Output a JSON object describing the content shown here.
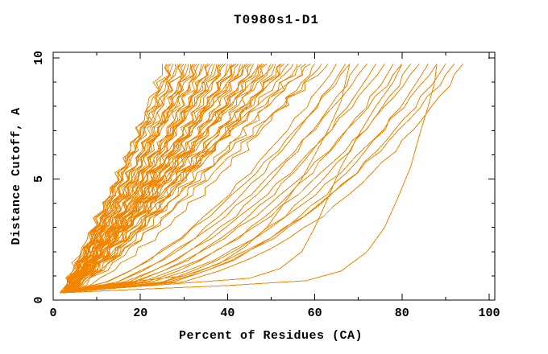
{
  "title": "T0980s1-D1",
  "colors": {
    "background": "#FFFFFF",
    "axis": "#000000",
    "curve": "#F28500"
  },
  "chart_data": {
    "type": "line",
    "title": "T0980s1-D1",
    "xlabel": "Percent of Residues (CA)",
    "ylabel": "Distance Cutoff, A",
    "xlim": [
      0,
      100
    ],
    "ylim": [
      0,
      10
    ],
    "grid": false,
    "legend": false,
    "x_major_ticks": [
      0,
      20,
      40,
      60,
      80,
      100
    ],
    "x_minor_ticks": [
      10,
      30,
      50,
      70,
      90
    ],
    "y_major_ticks": [
      0,
      5,
      10
    ],
    "y_minor_ticks": [
      1,
      2,
      3,
      4,
      6,
      7,
      8,
      9
    ],
    "series_color": "#F28500",
    "curve_start": {
      "x": 2,
      "y": 0.3
    },
    "curve_top_cutoff": 9.75,
    "curves": {
      "comment_dense": "each entry = [percent_at_top_cutoff, shape_exponent, start_percent, step_jag_amplitude]; x(y)=s+(e-s)*((y-0.3)/9.45)^k",
      "dense": [
        [
          25,
          0.85,
          1.5,
          1.2
        ],
        [
          26,
          1.0,
          2.0,
          1.4
        ],
        [
          26.5,
          0.9,
          2.5,
          1.0
        ],
        [
          27,
          1.1,
          3.0,
          1.5
        ],
        [
          27.5,
          0.95,
          1.8,
          1.1
        ],
        [
          28,
          0.8,
          2.2,
          1.3
        ],
        [
          28.5,
          1.05,
          2.8,
          0.9
        ],
        [
          29,
          0.9,
          1.5,
          1.6
        ],
        [
          29.5,
          1.15,
          2.0,
          1.2
        ],
        [
          30,
          0.75,
          2.5,
          1.4
        ],
        [
          30.5,
          0.85,
          3.0,
          1.0
        ],
        [
          31,
          1.0,
          1.8,
          1.5
        ],
        [
          31.5,
          0.9,
          2.2,
          1.1
        ],
        [
          32,
          1.1,
          2.8,
          1.3
        ],
        [
          32.5,
          0.95,
          1.5,
          0.9
        ],
        [
          33,
          0.8,
          2.0,
          1.6
        ],
        [
          33.5,
          1.05,
          2.5,
          1.2
        ],
        [
          34,
          0.9,
          3.0,
          1.4
        ],
        [
          34.5,
          1.15,
          1.8,
          1.0
        ],
        [
          35,
          0.75,
          2.2,
          1.5
        ],
        [
          35.5,
          0.85,
          2.8,
          1.1
        ],
        [
          36,
          1.0,
          1.5,
          1.3
        ],
        [
          36.5,
          0.9,
          2.0,
          0.9
        ],
        [
          37,
          1.1,
          2.5,
          1.6
        ],
        [
          37.5,
          0.95,
          3.0,
          1.2
        ],
        [
          38,
          0.8,
          1.8,
          1.4
        ],
        [
          38.5,
          1.05,
          2.2,
          1.0
        ],
        [
          39,
          0.9,
          2.8,
          1.5
        ],
        [
          39.5,
          1.15,
          1.5,
          1.1
        ],
        [
          40,
          0.75,
          2.0,
          1.3
        ],
        [
          40.5,
          0.85,
          2.5,
          0.9
        ],
        [
          41,
          1.0,
          3.0,
          1.6
        ],
        [
          41.5,
          0.9,
          1.8,
          1.2
        ],
        [
          42,
          1.1,
          2.2,
          1.4
        ],
        [
          42.5,
          0.95,
          2.8,
          1.0
        ],
        [
          43,
          0.8,
          1.5,
          1.5
        ],
        [
          43.5,
          1.05,
          2.0,
          1.1
        ],
        [
          44,
          0.9,
          2.5,
          1.3
        ],
        [
          44.5,
          1.15,
          3.0,
          0.9
        ],
        [
          45,
          0.75,
          1.8,
          1.6
        ],
        [
          45.5,
          0.85,
          2.2,
          1.2
        ],
        [
          46,
          1.0,
          2.8,
          1.4
        ],
        [
          47,
          0.9,
          1.5,
          1.0
        ],
        [
          47.5,
          1.1,
          2.0,
          1.5
        ],
        [
          48,
          0.95,
          2.5,
          1.1
        ],
        [
          48.5,
          0.8,
          3.0,
          1.3
        ],
        [
          49,
          1.05,
          1.8,
          0.9
        ],
        [
          50,
          0.9,
          2.2,
          1.6
        ],
        [
          50.5,
          1.15,
          2.8,
          1.2
        ],
        [
          51,
          0.75,
          1.5,
          1.4
        ],
        [
          52,
          0.85,
          2.0,
          1.0
        ],
        [
          52.5,
          1.0,
          2.5,
          1.5
        ],
        [
          53,
          0.9,
          3.0,
          1.1
        ],
        [
          54,
          1.1,
          1.8,
          1.3
        ],
        [
          55,
          0.95,
          2.2,
          0.9
        ],
        [
          56,
          0.8,
          2.8,
          1.6
        ],
        [
          57,
          1.05,
          1.5,
          1.2
        ],
        [
          58,
          0.9,
          2.0,
          1.4
        ],
        [
          59,
          1.15,
          2.5,
          1.0
        ],
        [
          60,
          0.75,
          3.0,
          1.5
        ],
        [
          61.5,
          0.85,
          1.8,
          1.1
        ],
        [
          63,
          1.0,
          2.2,
          1.3
        ]
      ],
      "slow": [
        [
          65,
          0.6,
          2.0,
          0.5
        ],
        [
          67,
          0.55,
          2.5,
          0.5
        ],
        [
          68,
          0.62,
          2.0,
          0.4
        ],
        [
          70,
          0.5,
          1.8,
          0.5
        ],
        [
          72,
          0.58,
          2.2,
          0.4
        ],
        [
          74,
          0.48,
          2.0,
          0.5
        ],
        [
          76,
          0.55,
          2.5,
          0.4
        ],
        [
          78,
          0.45,
          2.0,
          0.5
        ],
        [
          80,
          0.52,
          1.8,
          0.4
        ],
        [
          82,
          0.42,
          2.2,
          0.5
        ],
        [
          84,
          0.5,
          2.0,
          0.4
        ],
        [
          86,
          0.4,
          2.5,
          0.5
        ],
        [
          88,
          0.47,
          2.0,
          0.4
        ],
        [
          90,
          0.42,
          1.8,
          0.4
        ],
        [
          92,
          0.45,
          2.2,
          0.4
        ],
        [
          94,
          0.4,
          2.0,
          0.4
        ]
      ],
      "outliers": [
        [
          [
            2,
            0.3
          ],
          [
            20,
            0.45
          ],
          [
            40,
            0.6
          ],
          [
            58,
            0.8
          ],
          [
            66,
            1.2
          ],
          [
            72,
            2.0
          ],
          [
            76,
            3.0
          ],
          [
            79,
            4.2
          ],
          [
            82,
            5.5
          ],
          [
            84,
            6.8
          ],
          [
            86,
            8.0
          ],
          [
            87.5,
            9.0
          ],
          [
            88,
            9.75
          ]
        ],
        [
          [
            2,
            0.3
          ],
          [
            15,
            0.5
          ],
          [
            30,
            0.7
          ],
          [
            45,
            0.9
          ],
          [
            52,
            1.3
          ],
          [
            57,
            2.0
          ],
          [
            60,
            3.0
          ],
          [
            63,
            4.2
          ],
          [
            66,
            5.5
          ],
          [
            70,
            6.8
          ],
          [
            74,
            8.0
          ],
          [
            78,
            9.0
          ],
          [
            80,
            9.75
          ]
        ],
        [
          [
            2,
            0.3
          ],
          [
            10,
            0.6
          ],
          [
            20,
            0.8
          ],
          [
            30,
            1.0
          ],
          [
            38,
            1.5
          ],
          [
            44,
            2.2
          ],
          [
            49,
            3.0
          ],
          [
            53,
            4.0
          ],
          [
            57,
            5.0
          ],
          [
            60,
            6.0
          ],
          [
            63,
            7.0
          ],
          [
            66,
            8.2
          ],
          [
            68,
            9.75
          ]
        ]
      ]
    }
  },
  "layout_note_visible_only": "single panel line chart, no legend, no gridlines"
}
